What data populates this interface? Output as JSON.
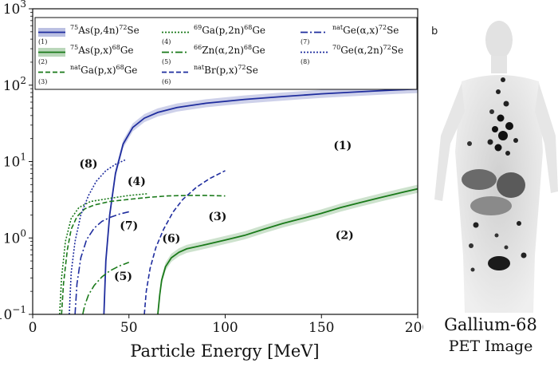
{
  "chart_data": {
    "type": "line",
    "xlabel": "Particle Energy [MeV]",
    "ylabel": "",
    "xlim": [
      0,
      200
    ],
    "ylim": [
      0.1,
      1000
    ],
    "yscale": "log",
    "x_ticks": [
      0,
      50,
      100,
      150,
      200
    ],
    "x_tick_labels": [
      "0",
      "50",
      "100",
      "150",
      "200"
    ],
    "y_ticks": [
      0.1,
      1,
      10,
      100,
      1000
    ],
    "y_tick_labels": [
      {
        "base": "10",
        "exp": "−1"
      },
      {
        "base": "10",
        "exp": "0"
      },
      {
        "base": "10",
        "exp": "1"
      },
      {
        "base": "10",
        "exp": "2"
      },
      {
        "base": "10",
        "exp": "3"
      }
    ],
    "grid": false,
    "legend_position": "top",
    "series": [
      {
        "id": "1",
        "iso": "75",
        "el": "As",
        "reaction": "(p,4n)",
        "piso": "72",
        "pel": "Se",
        "color": "#1f2d9e",
        "dash": "solid",
        "band": true,
        "label_at": [
          161,
          14.5
        ],
        "x": [
          37,
          38,
          40,
          43,
          47,
          52,
          58,
          65,
          75,
          90,
          110,
          130,
          150,
          170,
          190,
          200
        ],
        "y": [
          0.1,
          0.5,
          2.0,
          7.0,
          17,
          28,
          37,
          44,
          51,
          58,
          65,
          71,
          77,
          82,
          87,
          89
        ]
      },
      {
        "id": "2",
        "iso": "75",
        "el": "As",
        "reaction": "(p,x)",
        "piso": "68",
        "pel": "Ge",
        "color": "#1a7a1a",
        "dash": "solid",
        "band": true,
        "label_at": [
          162,
          0.97
        ],
        "x": [
          65,
          66,
          67,
          69,
          72,
          76,
          80,
          90,
          100,
          110,
          120,
          130,
          140,
          150,
          160,
          170,
          180,
          190,
          200
        ],
        "y": [
          0.1,
          0.18,
          0.28,
          0.42,
          0.55,
          0.65,
          0.72,
          0.82,
          0.94,
          1.08,
          1.3,
          1.55,
          1.8,
          2.1,
          2.5,
          2.9,
          3.35,
          3.85,
          4.4
        ]
      },
      {
        "id": "3",
        "iso": "nat",
        "el": "Ga",
        "reaction": "(p,x)",
        "piso": "68",
        "pel": "Ge",
        "color": "#1a7a1a",
        "dash": "6,3",
        "label_at": [
          96,
          1.7
        ],
        "x": [
          15,
          16,
          18,
          20,
          23,
          27,
          32,
          40,
          50,
          60,
          70,
          80,
          90,
          100
        ],
        "y": [
          0.1,
          0.25,
          0.7,
          1.3,
          1.9,
          2.4,
          2.7,
          3.0,
          3.2,
          3.4,
          3.55,
          3.6,
          3.6,
          3.55
        ]
      },
      {
        "id": "4",
        "iso": "69",
        "el": "Ga",
        "reaction": "(p,2n)",
        "piso": "68",
        "pel": "Ge",
        "color": "#1a7a1a",
        "dash": "2,2",
        "label_at": [
          54,
          4.9
        ],
        "x": [
          14,
          15,
          17,
          20,
          24,
          30,
          40,
          50,
          60
        ],
        "y": [
          0.1,
          0.3,
          0.9,
          1.8,
          2.5,
          3.0,
          3.3,
          3.6,
          3.8
        ]
      },
      {
        "id": "5",
        "iso": "66",
        "el": "Zn",
        "reaction": "(α,2n)",
        "piso": "68",
        "pel": "Ge",
        "color": "#1a7a1a",
        "dash": "9,3,2,3",
        "label_at": [
          47,
          0.28
        ],
        "x": [
          26,
          27,
          29,
          32,
          36,
          40,
          45,
          50
        ],
        "y": [
          0.1,
          0.13,
          0.18,
          0.24,
          0.31,
          0.37,
          0.43,
          0.48
        ]
      },
      {
        "id": "6",
        "iso": "nat",
        "el": "Br",
        "reaction": "(p,x)",
        "piso": "72",
        "pel": "Se",
        "color": "#1f2d9e",
        "dash": "6,3",
        "label_at": [
          72,
          0.88
        ],
        "x": [
          58,
          59,
          61,
          64,
          68,
          73,
          78,
          85,
          92,
          100
        ],
        "y": [
          0.1,
          0.2,
          0.4,
          0.75,
          1.3,
          2.2,
          3.2,
          4.6,
          6.0,
          7.6
        ]
      },
      {
        "id": "7",
        "iso": "nat",
        "el": "Ge",
        "reaction": "(α,x)",
        "piso": "72",
        "pel": "Se",
        "color": "#1f2d9e",
        "dash": "9,3,2,3",
        "label_at": [
          50,
          1.3
        ],
        "x": [
          22,
          23,
          25,
          28,
          32,
          36,
          40,
          45,
          50
        ],
        "y": [
          0.1,
          0.25,
          0.55,
          0.95,
          1.35,
          1.65,
          1.85,
          2.05,
          2.2
        ]
      },
      {
        "id": "8",
        "iso": "70",
        "el": "Ge",
        "reaction": "(α,2n)",
        "piso": "72",
        "pel": "Se",
        "color": "#1f2d9e",
        "dash": "2,2",
        "label_at": [
          29,
          8.4
        ],
        "x": [
          19,
          20,
          22,
          25,
          29,
          33,
          38,
          43,
          48
        ],
        "y": [
          0.1,
          0.35,
          0.9,
          2.0,
          3.6,
          5.5,
          7.6,
          9.2,
          10.5
        ]
      }
    ]
  },
  "side_image": {
    "panel_letter": "b",
    "caption_line1": "Gallium-68",
    "caption_line2": "PET Image"
  }
}
